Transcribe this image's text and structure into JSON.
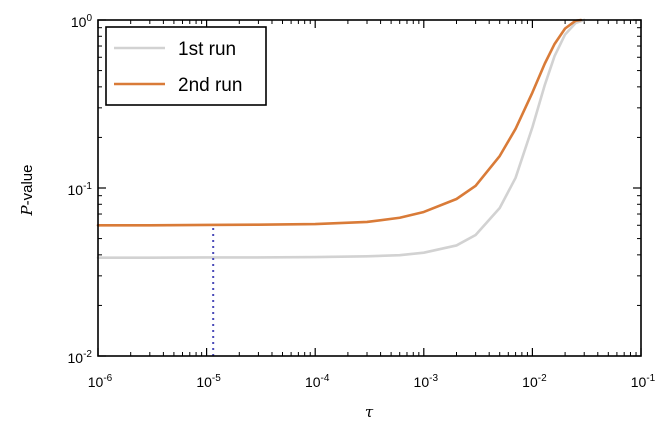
{
  "chart_data": {
    "type": "line",
    "title": "",
    "xlabel": "τ",
    "ylabel_italic": "P",
    "ylabel_rest": "-value",
    "xscale": "log",
    "yscale": "log",
    "xlim": [
      1e-06,
      0.1
    ],
    "ylim": [
      0.01,
      1
    ],
    "grid": false,
    "legend_position": "top-left",
    "x_ticks": [
      {
        "base": "10",
        "exp": "-6"
      },
      {
        "base": "10",
        "exp": "-5"
      },
      {
        "base": "10",
        "exp": "-4"
      },
      {
        "base": "10",
        "exp": "-3"
      },
      {
        "base": "10",
        "exp": "-2"
      },
      {
        "base": "10",
        "exp": "-1"
      }
    ],
    "y_ticks": [
      {
        "base": "10",
        "exp": "-2"
      },
      {
        "base": "10",
        "exp": "-1"
      },
      {
        "base": "10",
        "exp": "0"
      }
    ],
    "series": [
      {
        "name": "1st run",
        "color": "#d2d2d2",
        "x": [
          1e-06,
          3e-06,
          1e-05,
          3e-05,
          0.0001,
          0.0003,
          0.0006,
          0.001,
          0.002,
          0.003,
          0.005,
          0.007,
          0.01,
          0.013,
          0.016,
          0.02,
          0.025,
          0.03
        ],
        "y": [
          0.0385,
          0.0385,
          0.0386,
          0.0386,
          0.0388,
          0.0392,
          0.0398,
          0.0412,
          0.0455,
          0.0525,
          0.076,
          0.115,
          0.23,
          0.41,
          0.61,
          0.82,
          0.96,
          1.0
        ]
      },
      {
        "name": "2nd run",
        "color": "#d97b38",
        "x": [
          1e-06,
          3e-06,
          1e-05,
          3e-05,
          0.0001,
          0.0003,
          0.0006,
          0.001,
          0.002,
          0.003,
          0.005,
          0.007,
          0.01,
          0.013,
          0.016,
          0.02,
          0.025,
          0.028
        ],
        "y": [
          0.06,
          0.06,
          0.0603,
          0.0605,
          0.061,
          0.0628,
          0.0665,
          0.072,
          0.086,
          0.103,
          0.155,
          0.225,
          0.37,
          0.55,
          0.72,
          0.89,
          0.99,
          1.0
        ]
      }
    ],
    "vline": {
      "x": 1.15e-05,
      "y_from": 0.01,
      "y_to": 0.0603,
      "color": "#4a4ab8"
    }
  }
}
